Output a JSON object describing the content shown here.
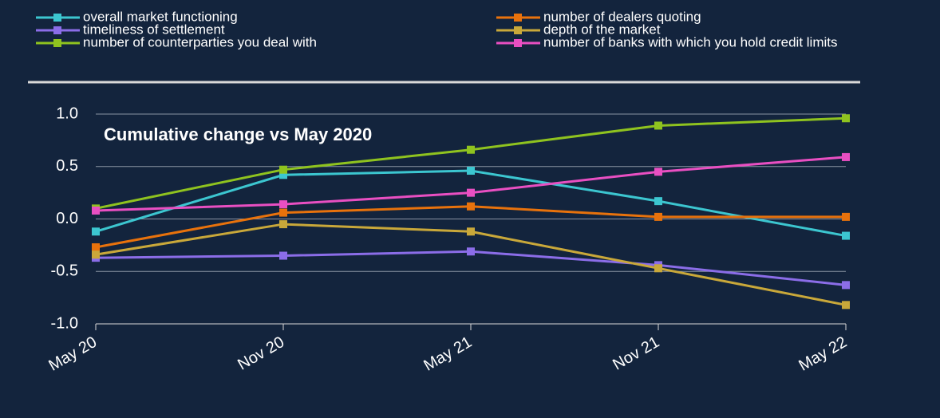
{
  "chart_data": {
    "type": "line",
    "annotation": "Cumulative change vs May 2020",
    "categories": [
      "May 20",
      "Nov 20",
      "May 21",
      "Nov 21",
      "May 22"
    ],
    "series": [
      {
        "name": "overall market functioning",
        "color": "#3cc6d0",
        "values": [
          -0.12,
          0.42,
          0.46,
          0.17,
          -0.16
        ]
      },
      {
        "name": "number of dealers quoting",
        "color": "#e8720c",
        "values": [
          -0.27,
          0.06,
          0.12,
          0.02,
          0.02
        ]
      },
      {
        "name": "timeliness of settlement",
        "color": "#8b6de8",
        "values": [
          -0.37,
          -0.35,
          -0.31,
          -0.44,
          -0.63
        ]
      },
      {
        "name": "depth of the market",
        "color": "#c9a83a",
        "values": [
          -0.34,
          -0.05,
          -0.12,
          -0.47,
          -0.82
        ]
      },
      {
        "name": "number of counterparties you deal with",
        "color": "#8fc31f",
        "values": [
          0.1,
          0.47,
          0.66,
          0.89,
          0.96
        ]
      },
      {
        "name": "number of banks with which you hold credit limits",
        "color": "#e94fc2",
        "values": [
          0.08,
          0.14,
          0.25,
          0.45,
          0.59
        ]
      }
    ],
    "ylim": [
      -1.0,
      1.0
    ],
    "yticks": [
      {
        "value": -1.0,
        "label": "-1.0"
      },
      {
        "value": -0.5,
        "label": "-0.5"
      },
      {
        "value": 0,
        "label": "0.0"
      },
      {
        "value": 0.5,
        "label": "0.5"
      },
      {
        "value": 1.0,
        "label": "1.0"
      }
    ],
    "grid": true
  }
}
